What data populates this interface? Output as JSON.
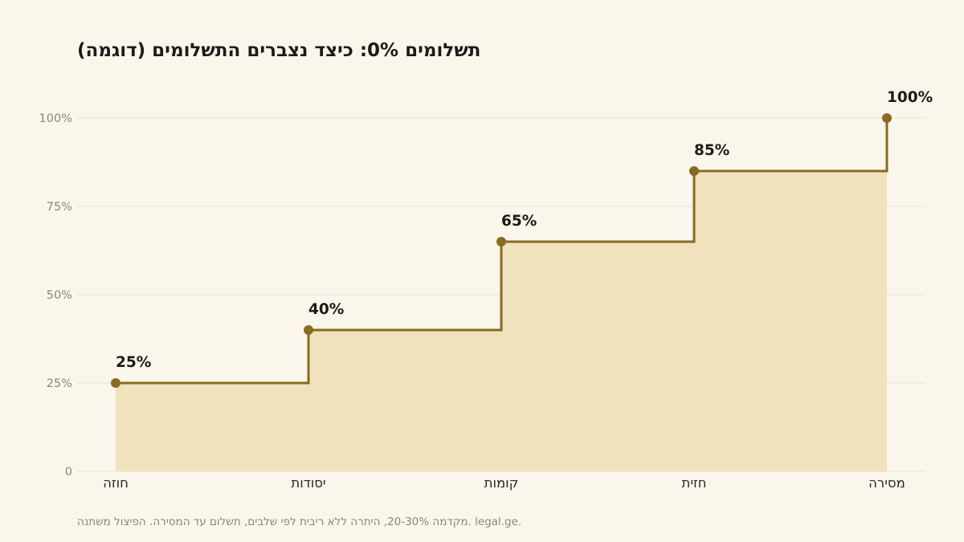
{
  "chart_data": {
    "type": "line",
    "step": true,
    "title": "תשלומים 0%: כיצד נצברים התשלומים (דוגמה)",
    "categories": [
      "חוזה",
      "יסודות",
      "קומות",
      "חזית",
      "מסירה"
    ],
    "values": [
      25,
      40,
      65,
      85,
      100
    ],
    "data_labels": [
      "25%",
      "40%",
      "65%",
      "85%",
      "100%"
    ],
    "ylim": [
      0,
      100
    ],
    "yticks": [
      0,
      25,
      50,
      75,
      100
    ],
    "ytick_labels": [
      "0",
      "25%",
      "50%",
      "75%",
      "100%"
    ],
    "xlabel": "",
    "ylabel": "",
    "grid": true,
    "footnote": "מקדמה 20-30%, היתרה ללא ריבית לפי שלבים, תשלום עד המסירה. הפיצול משתנה. legal.ge.",
    "colors": {
      "line": "#8a6a22",
      "area": "#f0e2bd",
      "grid": "#e8e2d4",
      "tick_text": "#8a8679",
      "category_text": "#2a2925",
      "label_text": "#1c1b17",
      "background": "#faf6ec"
    }
  }
}
